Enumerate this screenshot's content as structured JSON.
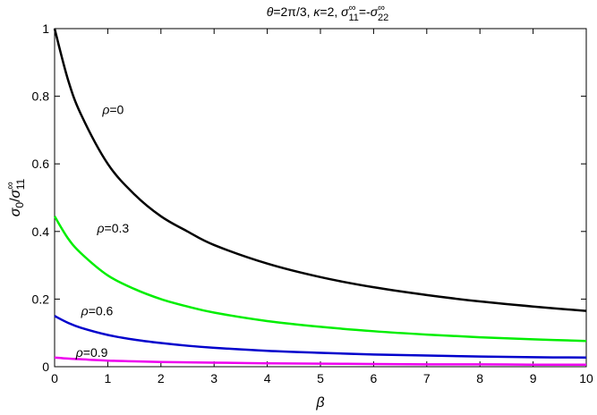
{
  "chart_data": {
    "type": "line",
    "title": "θ=2π/3,  κ=2,  σ₁₁^∞=-σ₂₂^∞",
    "title_parts": {
      "theta": "θ",
      "theta_eq": "=2π/3,  ",
      "kappa": "κ",
      "kappa_eq": "=2,  ",
      "sigma1": "σ",
      "sup1": "∞",
      "sub1": "11",
      "eq": "=-",
      "sigma2": "σ",
      "sup2": "∞",
      "sub2": "22"
    },
    "xlabel": "β",
    "ylabel": "σ0/σ11∞",
    "ylabel_parts": {
      "s1": "σ",
      "sub0": "0",
      "slash": "/",
      "s2": "σ",
      "sub11": "11",
      "sup": "∞"
    },
    "xlim": [
      0,
      10
    ],
    "ylim": [
      0,
      1
    ],
    "x_ticks": [
      "0",
      "1",
      "2",
      "3",
      "4",
      "5",
      "6",
      "7",
      "8",
      "9",
      "10"
    ],
    "y_ticks": [
      "0",
      "0.2",
      "0.4",
      "0.6",
      "0.8",
      "1"
    ],
    "x_tick_values": [
      0,
      1,
      2,
      3,
      4,
      5,
      6,
      7,
      8,
      9,
      10
    ],
    "y_tick_values": [
      0,
      0.2,
      0.4,
      0.6,
      0.8,
      1
    ],
    "grid": false,
    "series": [
      {
        "name": "ρ=0",
        "label_rho": "ρ",
        "label_value": "=0",
        "color": "#000000",
        "x": [
          0,
          0.25,
          0.5,
          1,
          1.5,
          2,
          2.5,
          3,
          4,
          5,
          6,
          7,
          8,
          9,
          10
        ],
        "y": [
          1.0,
          0.85,
          0.745,
          0.6,
          0.51,
          0.445,
          0.4,
          0.36,
          0.305,
          0.265,
          0.235,
          0.212,
          0.193,
          0.178,
          0.165
        ],
        "label_at": [
          1.1,
          0.76
        ]
      },
      {
        "name": "ρ=0.3",
        "label_rho": "ρ",
        "label_value": "=0.3",
        "color": "#00ee00",
        "x": [
          0,
          0.25,
          0.5,
          1,
          1.5,
          2,
          2.5,
          3,
          4,
          5,
          6,
          7,
          8,
          9,
          10
        ],
        "y": [
          0.445,
          0.38,
          0.335,
          0.27,
          0.23,
          0.2,
          0.178,
          0.16,
          0.135,
          0.118,
          0.105,
          0.095,
          0.087,
          0.081,
          0.076
        ],
        "label_at": [
          1.1,
          0.41
        ]
      },
      {
        "name": "ρ=0.6",
        "label_rho": "ρ",
        "label_value": "=0.6",
        "color": "#0000cc",
        "x": [
          0,
          0.25,
          0.5,
          1,
          1.5,
          2,
          2.5,
          3,
          4,
          5,
          6,
          7,
          8,
          9,
          10
        ],
        "y": [
          0.15,
          0.13,
          0.115,
          0.094,
          0.08,
          0.07,
          0.062,
          0.056,
          0.047,
          0.041,
          0.036,
          0.033,
          0.03,
          0.028,
          0.027
        ],
        "label_at": [
          0.8,
          0.165
        ]
      },
      {
        "name": "ρ=0.9",
        "label_rho": "ρ",
        "label_value": "=0.9",
        "color": "#ee00ee",
        "x": [
          0,
          0.25,
          0.5,
          1,
          1.5,
          2,
          2.5,
          3,
          4,
          5,
          6,
          7,
          8,
          9,
          10
        ],
        "y": [
          0.027,
          0.024,
          0.022,
          0.018,
          0.016,
          0.014,
          0.013,
          0.012,
          0.01,
          0.009,
          0.008,
          0.007,
          0.007,
          0.006,
          0.006
        ],
        "label_at": [
          0.7,
          0.042
        ]
      }
    ]
  }
}
